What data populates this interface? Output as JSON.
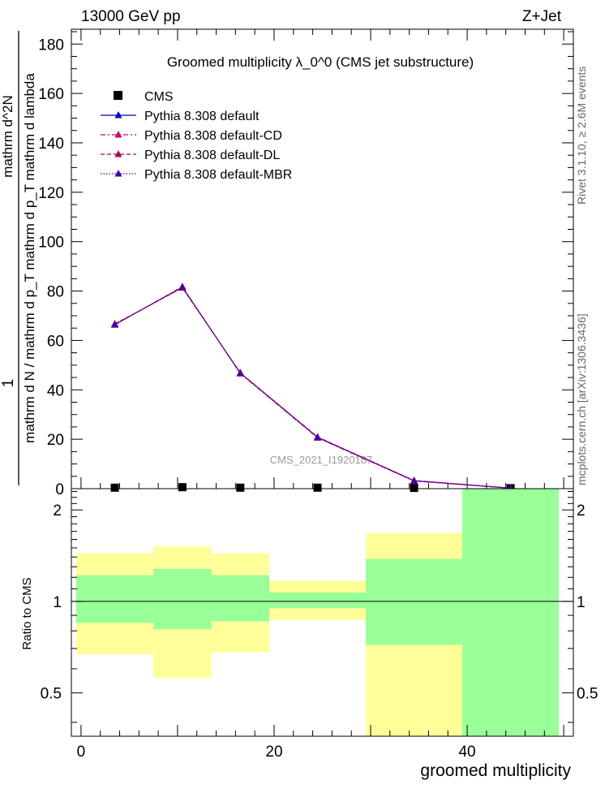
{
  "header": {
    "energy_label": "13000 GeV pp",
    "process_label": "Z+Jet"
  },
  "side_labels": {
    "rivet": "Rivet 3.1.10, ≥ 2.6M events",
    "mcplots": "mcplots.cern.ch [arXiv:1306.3436]"
  },
  "colors": {
    "data_marker": "#000000",
    "default": "#0000cc",
    "cd": "#cc0066",
    "dl": "#aa0055",
    "mbr": "#4400aa",
    "band_inner": "#99ff99",
    "band_outer": "#ffff99"
  },
  "chart_data": [
    {
      "type": "line",
      "title": "Groomed multiplicity  λ_0^0 (CMS jet substructure)",
      "ylabel_top": "1",
      "ylabel_bottom": "mathrm d N / mathrm d p_T mathrm d p_T mathrm d lambda",
      "ylabel_numerator": "mathrm d^2N",
      "watermark": "CMS_2021_I1920187",
      "ylim": [
        0,
        186
      ],
      "xlim": [
        -1,
        51
      ],
      "yticks": [
        0,
        20,
        40,
        60,
        80,
        100,
        120,
        140,
        160,
        180
      ],
      "legend_position": "top-left",
      "legend": [
        {
          "label": "CMS",
          "style": "square"
        },
        {
          "label": "Pythia 8.308 default",
          "style": "solid"
        },
        {
          "label": "Pythia 8.308 default-CD",
          "style": "dashdot"
        },
        {
          "label": "Pythia 8.308 default-DL",
          "style": "dash"
        },
        {
          "label": "Pythia 8.308 default-MBR",
          "style": "dot"
        }
      ],
      "x": [
        3.5,
        10.5,
        16.5,
        24.5,
        34.5,
        44.5
      ],
      "series": [
        {
          "name": "CMS",
          "values": [
            0.4,
            0.6,
            0.4,
            0.4,
            0.3,
            0.2
          ]
        },
        {
          "name": "Pythia 8.308 default",
          "values": [
            66.5,
            81.5,
            46.8,
            20.8,
            3.2,
            0.2
          ]
        },
        {
          "name": "Pythia 8.308 default-CD",
          "values": [
            66.3,
            81.8,
            46.6,
            20.6,
            3.1,
            0.2
          ]
        },
        {
          "name": "Pythia 8.308 default-DL",
          "values": [
            66.7,
            81.3,
            46.9,
            20.9,
            3.3,
            0.2
          ]
        },
        {
          "name": "Pythia 8.308 default-MBR",
          "values": [
            66.4,
            81.6,
            46.7,
            20.7,
            3.2,
            0.2
          ]
        }
      ]
    },
    {
      "type": "bar",
      "ylabel": "Ratio to CMS",
      "xlabel": "groomed multiplicity",
      "ylim": [
        0.36,
        2.35
      ],
      "xlim": [
        -1,
        51
      ],
      "xticks": [
        0,
        20,
        40
      ],
      "yticks": [
        0.5,
        1,
        2
      ],
      "reference_line": 1,
      "bins": [
        {
          "low": -0.5,
          "high": 7.5,
          "inner": [
            0.85,
            1.22
          ],
          "outer": [
            0.67,
            1.44
          ]
        },
        {
          "low": 7.5,
          "high": 13.5,
          "inner": [
            0.81,
            1.28
          ],
          "outer": [
            0.56,
            1.52
          ]
        },
        {
          "low": 13.5,
          "high": 19.5,
          "inner": [
            0.86,
            1.22
          ],
          "outer": [
            0.68,
            1.44
          ]
        },
        {
          "low": 19.5,
          "high": 29.5,
          "inner": [
            0.95,
            1.07
          ],
          "outer": [
            0.87,
            1.17
          ]
        },
        {
          "low": 29.5,
          "high": 39.5,
          "inner": [
            0.72,
            1.38
          ],
          "outer": [
            0.36,
            1.68
          ]
        },
        {
          "low": 39.5,
          "high": 49.5,
          "inner": [
            0.36,
            2.35
          ],
          "outer": [
            0.36,
            2.35
          ]
        }
      ]
    }
  ]
}
